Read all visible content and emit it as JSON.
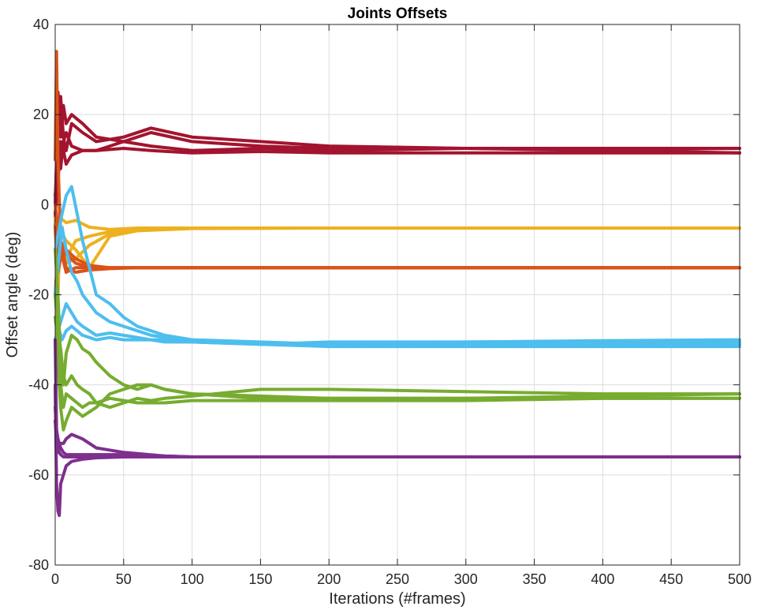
{
  "chart_data": {
    "type": "line",
    "title": "Joints Offsets",
    "xlabel": "Iterations (#frames)",
    "ylabel": "Offset angle (deg)",
    "xlim": [
      0,
      500
    ],
    "ylim": [
      -80,
      40
    ],
    "xticks": [
      0,
      50,
      100,
      150,
      200,
      250,
      300,
      350,
      400,
      450,
      500
    ],
    "yticks": [
      -80,
      -60,
      -40,
      -20,
      0,
      20,
      40
    ],
    "grid": true,
    "legend": "none",
    "series": [
      {
        "color": "#A2142F",
        "x": [
          0,
          2,
          4,
          6,
          8,
          12,
          20,
          30,
          50,
          70,
          100,
          150,
          200,
          300,
          400,
          500
        ],
        "y": [
          -5,
          25,
          15,
          22,
          18,
          20,
          18,
          15,
          14,
          16,
          14,
          13,
          12.5,
          12.5,
          12.2,
          12.5
        ]
      },
      {
        "color": "#A2142F",
        "x": [
          0,
          2,
          4,
          6,
          8,
          12,
          20,
          30,
          50,
          70,
          100,
          150,
          200,
          300,
          400,
          500
        ],
        "y": [
          0,
          20,
          24,
          15,
          12,
          18,
          16,
          14,
          15,
          17,
          15,
          14,
          13,
          12.5,
          12,
          11.5
        ]
      },
      {
        "color": "#A2142F",
        "x": [
          0,
          2,
          4,
          6,
          8,
          12,
          20,
          30,
          50,
          70,
          100,
          150,
          200,
          300,
          400,
          500
        ],
        "y": [
          2,
          10,
          8,
          14,
          16,
          13,
          12,
          12,
          14,
          13,
          12,
          12.5,
          12,
          12.5,
          12.5,
          12.5
        ]
      },
      {
        "color": "#A2142F",
        "x": [
          0,
          2,
          4,
          6,
          8,
          12,
          20,
          30,
          50,
          70,
          100,
          150,
          200,
          300,
          400,
          500
        ],
        "y": [
          -2,
          5,
          14,
          12,
          9,
          11,
          12,
          12,
          12.5,
          12,
          11.5,
          11.8,
          11.5,
          11.5,
          11.5,
          11.5
        ]
      },
      {
        "color": "#EDB120",
        "x": [
          0,
          2,
          4,
          8,
          15,
          25,
          40,
          60,
          100,
          200,
          300,
          500
        ],
        "y": [
          -5,
          -20,
          -3,
          -4,
          -3.5,
          -5,
          -5.5,
          -5.2,
          -5.2,
          -5.2,
          -5.2,
          -5.2
        ]
      },
      {
        "color": "#EDB120",
        "x": [
          0,
          2,
          4,
          8,
          15,
          25,
          40,
          60,
          100,
          200,
          300,
          500
        ],
        "y": [
          -3,
          -8,
          -10,
          -12,
          -8,
          -7,
          -6,
          -5.5,
          -5.2,
          -5.2,
          -5.2,
          -5.2
        ]
      },
      {
        "color": "#EDB120",
        "x": [
          0,
          2,
          4,
          8,
          15,
          25,
          40,
          60,
          100,
          200,
          300,
          500
        ],
        "y": [
          -5,
          -3,
          -6,
          -8,
          -10,
          -14,
          -7,
          -5.8,
          -5.3,
          -5.2,
          -5.2,
          -5.2
        ]
      },
      {
        "color": "#EDB120",
        "x": [
          0,
          2,
          4,
          8,
          15,
          25,
          40,
          60,
          100,
          200,
          300,
          500
        ],
        "y": [
          -4,
          -6,
          -9,
          -13,
          -12,
          -9,
          -6.5,
          -5.5,
          -5.2,
          -5.2,
          -5.2,
          -5.2
        ]
      },
      {
        "color": "#D95319",
        "x": [
          0,
          1,
          2,
          4,
          8,
          15,
          25,
          40,
          60,
          100,
          500
        ],
        "y": [
          10,
          34,
          10,
          -8,
          -11,
          -13,
          -14,
          -14,
          -14,
          -14,
          -14
        ]
      },
      {
        "color": "#D95319",
        "x": [
          0,
          2,
          4,
          8,
          15,
          25,
          40,
          60,
          100,
          500
        ],
        "y": [
          -5,
          -15,
          -12,
          -10,
          -12,
          -13.5,
          -14,
          -14,
          -14,
          -14
        ]
      },
      {
        "color": "#D95319",
        "x": [
          0,
          2,
          4,
          8,
          15,
          25,
          40,
          60,
          100,
          500
        ],
        "y": [
          -20,
          -10,
          -8,
          -14,
          -15,
          -14.5,
          -14.2,
          -14,
          -14,
          -14
        ]
      },
      {
        "color": "#D95319",
        "x": [
          0,
          2,
          4,
          8,
          15,
          25,
          40,
          60,
          100,
          500
        ],
        "y": [
          0,
          -5,
          -10,
          -15,
          -14,
          -14,
          -14,
          -14,
          -14,
          -14
        ]
      },
      {
        "color": "#4DBEEE",
        "x": [
          0,
          5,
          8,
          12,
          16,
          20,
          25,
          30,
          40,
          50,
          60,
          70,
          80,
          100,
          150,
          200,
          300,
          400,
          500
        ],
        "y": [
          -10,
          -2,
          2,
          4,
          -2,
          -8,
          -14,
          -20,
          -22,
          -25,
          -27,
          -28,
          -29,
          -30,
          -31,
          -30.5,
          -30.5,
          -30.5,
          -30.5
        ]
      },
      {
        "color": "#4DBEEE",
        "x": [
          0,
          5,
          8,
          12,
          16,
          20,
          25,
          30,
          40,
          50,
          60,
          70,
          80,
          100,
          150,
          200,
          300,
          400,
          500
        ],
        "y": [
          -20,
          -5,
          -10,
          -15,
          -17,
          -20,
          -22,
          -24,
          -26,
          -27,
          -28,
          -29,
          -29.5,
          -30,
          -30.5,
          -31,
          -31,
          -31,
          -31
        ]
      },
      {
        "color": "#4DBEEE",
        "x": [
          0,
          5,
          8,
          12,
          16,
          20,
          25,
          30,
          40,
          50,
          60,
          70,
          80,
          100,
          150,
          200,
          300,
          400,
          500
        ],
        "y": [
          -30,
          -25,
          -22,
          -24,
          -26,
          -27,
          -28,
          -29,
          -28.5,
          -29,
          -29.5,
          -30,
          -30,
          -30.5,
          -31,
          -30.8,
          -30.5,
          -30.2,
          -30
        ]
      },
      {
        "color": "#4DBEEE",
        "x": [
          0,
          5,
          8,
          12,
          16,
          20,
          25,
          30,
          40,
          50,
          60,
          70,
          80,
          100,
          150,
          200,
          300,
          400,
          500
        ],
        "y": [
          -25,
          -30,
          -28,
          -27,
          -28,
          -29,
          -29.5,
          -30,
          -29.5,
          -30,
          -30,
          -30,
          -30.5,
          -30.5,
          -31,
          -31.5,
          -31.5,
          -31.5,
          -31.5
        ]
      },
      {
        "color": "#77AC30",
        "x": [
          0,
          2,
          4,
          6,
          8,
          12,
          16,
          20,
          25,
          30,
          40,
          50,
          60,
          70,
          80,
          100,
          150,
          200,
          300,
          400,
          500
        ],
        "y": [
          -10,
          -20,
          -35,
          -40,
          -33,
          -29,
          -30,
          -32,
          -33,
          -35,
          -38,
          -40,
          -41,
          -40,
          -41,
          -42,
          -43,
          -43,
          -43,
          -43,
          -43
        ]
      },
      {
        "color": "#77AC30",
        "x": [
          0,
          2,
          4,
          6,
          8,
          12,
          16,
          20,
          25,
          30,
          40,
          50,
          60,
          70,
          80,
          100,
          150,
          200,
          300,
          400,
          500
        ],
        "y": [
          -30,
          -35,
          -45,
          -50,
          -48,
          -45,
          -46,
          -47,
          -46,
          -45,
          -42,
          -41,
          -40,
          -40,
          -41,
          -42,
          -42.5,
          -43,
          -43,
          -42.5,
          -42
        ]
      },
      {
        "color": "#77AC30",
        "x": [
          0,
          2,
          4,
          6,
          8,
          12,
          16,
          20,
          25,
          30,
          40,
          50,
          60,
          70,
          80,
          100,
          150,
          200,
          300,
          400,
          500
        ],
        "y": [
          -20,
          -28,
          -32,
          -38,
          -40,
          -38,
          -40,
          -41,
          -42,
          -44,
          -45,
          -44,
          -43,
          -43.5,
          -43,
          -42.5,
          -41,
          -41,
          -41.5,
          -42,
          -42
        ]
      },
      {
        "color": "#77AC30",
        "x": [
          0,
          2,
          4,
          6,
          8,
          12,
          16,
          20,
          25,
          30,
          40,
          50,
          60,
          70,
          80,
          100,
          150,
          200,
          300,
          400,
          500
        ],
        "y": [
          -25,
          -30,
          -40,
          -45,
          -42,
          -43,
          -44,
          -45,
          -44,
          -44,
          -43,
          -43.5,
          -44,
          -44,
          -44,
          -43.5,
          -43.5,
          -43.5,
          -43.5,
          -43,
          -43
        ]
      },
      {
        "color": "#7E2F8E",
        "x": [
          0,
          1,
          2,
          3,
          4,
          6,
          8,
          12,
          20,
          30,
          50,
          80,
          100,
          500
        ],
        "y": [
          -40,
          -62,
          -68,
          -69,
          -62,
          -60,
          -58,
          -57,
          -56.5,
          -56.2,
          -56,
          -56,
          -56,
          -56
        ]
      },
      {
        "color": "#7E2F8E",
        "x": [
          0,
          1,
          2,
          3,
          4,
          6,
          8,
          12,
          20,
          30,
          50,
          80,
          100,
          500
        ],
        "y": [
          -48,
          -52,
          -54,
          -55,
          -55.5,
          -56,
          -56,
          -56,
          -56,
          -56,
          -56,
          -56,
          -56,
          -56
        ]
      },
      {
        "color": "#7E2F8E",
        "x": [
          0,
          1,
          2,
          3,
          4,
          6,
          8,
          12,
          20,
          30,
          50,
          80,
          100,
          500
        ],
        "y": [
          -45,
          -50,
          -52,
          -53,
          -54,
          -55,
          -55.5,
          -55.5,
          -55.5,
          -55.5,
          -55.5,
          -55.8,
          -56,
          -56
        ]
      },
      {
        "color": "#7E2F8E",
        "x": [
          0,
          1,
          2,
          3,
          4,
          6,
          8,
          12,
          20,
          30,
          50,
          80,
          100,
          500
        ],
        "y": [
          -30,
          -50,
          -55,
          -54,
          -53,
          -53,
          -52,
          -51,
          -52,
          -54,
          -55,
          -55.8,
          -56,
          -56
        ]
      }
    ]
  }
}
